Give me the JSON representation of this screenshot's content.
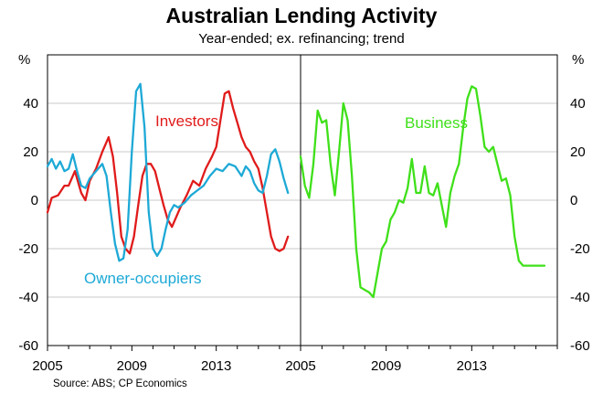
{
  "title": "Australian Lending Activity",
  "subtitle": "Year-ended; ex. refinancing; trend",
  "source": "Source: ABS; CP Economics",
  "chart_data": {
    "type": "line",
    "y_unit_left": "%",
    "y_unit_right": "%",
    "ylim": [
      -60,
      60
    ],
    "yticks": [
      -60,
      -40,
      -20,
      0,
      20,
      40
    ],
    "grid": "horizontal",
    "panels": [
      {
        "name": "left",
        "xlim": [
          2005,
          2017
        ],
        "xticks": [
          2005,
          2009,
          2013
        ],
        "series": [
          {
            "name": "Investors",
            "color": "#e01b1b",
            "label_color": "#e01b1b",
            "x": [
              2005,
              2005.2,
              2005.5,
              2005.8,
              2006,
              2006.3,
              2006.6,
              2006.8,
              2007,
              2007.3,
              2007.6,
              2007.9,
              2008.1,
              2008.3,
              2008.5,
              2008.7,
              2008.9,
              2009.1,
              2009.3,
              2009.5,
              2009.7,
              2009.9,
              2010.1,
              2010.3,
              2010.5,
              2010.7,
              2010.9,
              2011.1,
              2011.3,
              2011.6,
              2011.9,
              2012.2,
              2012.5,
              2012.8,
              2013,
              2013.2,
              2013.4,
              2013.6,
              2013.8,
              2014,
              2014.2,
              2014.4,
              2014.6,
              2014.8,
              2015,
              2015.2,
              2015.4,
              2015.6,
              2015.8,
              2016,
              2016.2,
              2016.4
            ],
            "y": [
              -5,
              1,
              2,
              6,
              6,
              12,
              3,
              0,
              8,
              13,
              20,
              26,
              18,
              3,
              -15,
              -20,
              -22,
              -15,
              -2,
              10,
              15,
              15,
              12,
              5,
              -2,
              -8,
              -11,
              -7,
              -3,
              2,
              8,
              6,
              13,
              18,
              22,
              33,
              44,
              45,
              38,
              32,
              26,
              22,
              20,
              16,
              13,
              5,
              -5,
              -15,
              -20,
              -21,
              -20,
              -15
            ]
          },
          {
            "name": "Owner-occupiers",
            "color": "#1da9d6",
            "label_color": "#1da9d6",
            "x": [
              2005,
              2005.2,
              2005.4,
              2005.6,
              2005.8,
              2006,
              2006.2,
              2006.4,
              2006.6,
              2006.8,
              2007,
              2007.3,
              2007.6,
              2007.8,
              2008,
              2008.2,
              2008.4,
              2008.6,
              2008.8,
              2009,
              2009.2,
              2009.4,
              2009.6,
              2009.8,
              2010,
              2010.2,
              2010.4,
              2010.6,
              2010.8,
              2011,
              2011.2,
              2011.5,
              2011.8,
              2012.1,
              2012.4,
              2012.7,
              2013,
              2013.3,
              2013.6,
              2013.9,
              2014.2,
              2014.4,
              2014.6,
              2014.8,
              2015,
              2015.2,
              2015.4,
              2015.6,
              2015.8,
              2016,
              2016.2,
              2016.4
            ],
            "y": [
              14,
              17,
              13,
              16,
              12,
              13,
              19,
              12,
              6,
              5,
              9,
              12,
              15,
              10,
              -5,
              -18,
              -25,
              -24,
              -12,
              20,
              45,
              48,
              30,
              -5,
              -20,
              -23,
              -20,
              -12,
              -5,
              -2,
              -3,
              -1,
              2,
              4,
              6,
              10,
              13,
              12,
              15,
              14,
              10,
              14,
              12,
              7,
              4,
              3,
              10,
              19,
              21,
              16,
              9,
              3
            ]
          }
        ]
      },
      {
        "name": "right",
        "xlim": [
          2005,
          2017
        ],
        "xticks": [
          2005,
          2009,
          2013
        ],
        "series": [
          {
            "name": "Business",
            "color": "#3fe01a",
            "label_color": "#3fe01a",
            "x": [
              2005,
              2005.2,
              2005.4,
              2005.6,
              2005.8,
              2006,
              2006.2,
              2006.4,
              2006.6,
              2006.8,
              2007,
              2007.2,
              2007.4,
              2007.6,
              2007.8,
              2008,
              2008.2,
              2008.4,
              2008.6,
              2008.8,
              2009,
              2009.2,
              2009.4,
              2009.6,
              2009.8,
              2010,
              2010.2,
              2010.4,
              2010.6,
              2010.8,
              2011,
              2011.2,
              2011.4,
              2011.6,
              2011.8,
              2012,
              2012.2,
              2012.4,
              2012.6,
              2012.8,
              2013,
              2013.2,
              2013.4,
              2013.6,
              2013.8,
              2014,
              2014.2,
              2014.4,
              2014.6,
              2014.8,
              2015,
              2015.2,
              2015.4,
              2015.6,
              2015.8,
              2016,
              2016.2,
              2016.4
            ],
            "y": [
              18,
              6,
              1,
              15,
              37,
              32,
              33,
              15,
              2,
              20,
              40,
              33,
              10,
              -20,
              -36,
              -37,
              -38,
              -40,
              -30,
              -20,
              -17,
              -8,
              -5,
              0,
              -1,
              5,
              17,
              3,
              3,
              14,
              3,
              2,
              7,
              -2,
              -11,
              3,
              10,
              15,
              30,
              42,
              47,
              46,
              35,
              22,
              20,
              22,
              15,
              8,
              9,
              2,
              -15,
              -25,
              -27,
              -27,
              -27,
              -27,
              -27,
              -27
            ]
          }
        ]
      }
    ]
  }
}
